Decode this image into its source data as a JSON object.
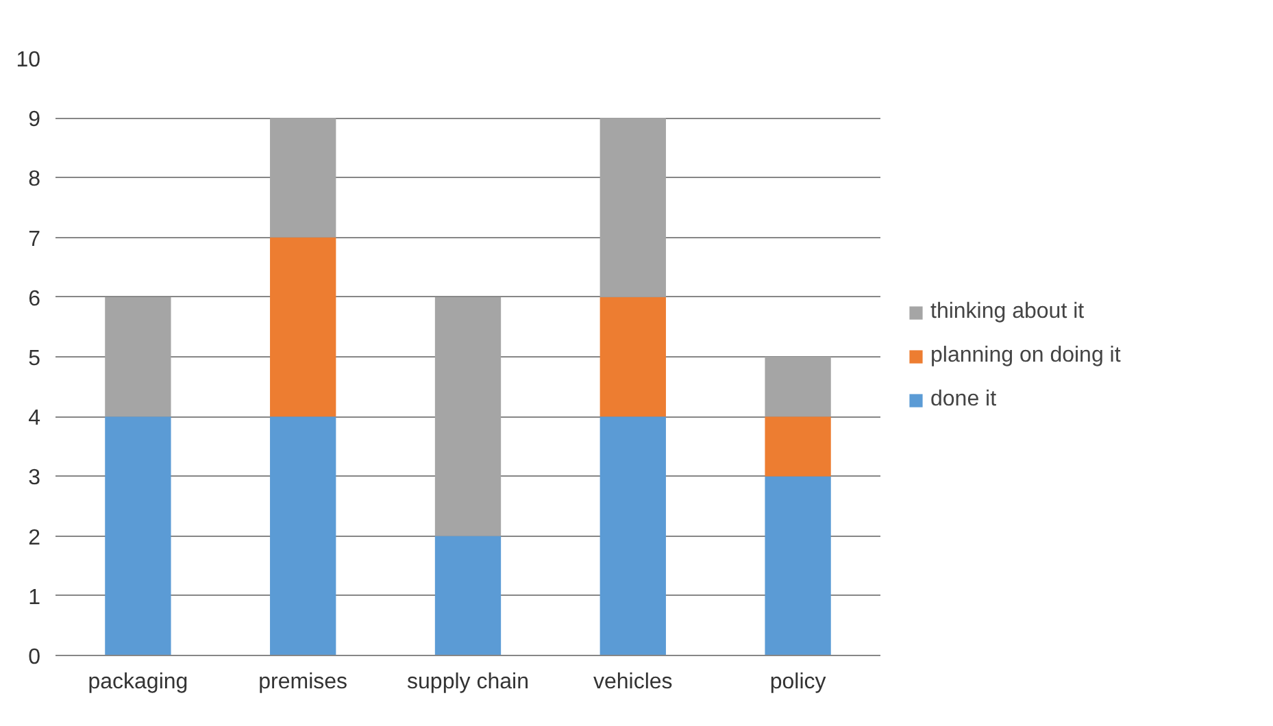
{
  "chart_data": {
    "type": "bar",
    "stacked": true,
    "categories": [
      "packaging",
      "premises",
      "supply chain",
      "vehicles",
      "policy"
    ],
    "series": [
      {
        "name": "done it",
        "color": "#5b9bd5",
        "values": [
          4,
          4,
          2,
          4,
          3
        ]
      },
      {
        "name": "planning on doing it",
        "color": "#ed7d31",
        "values": [
          0,
          3,
          0,
          2,
          1
        ]
      },
      {
        "name": "thinking about it",
        "color": "#a5a5a5",
        "values": [
          2,
          2,
          4,
          3,
          1
        ]
      }
    ],
    "ylim": [
      0,
      10
    ],
    "yticks": [
      0,
      1,
      2,
      3,
      4,
      5,
      6,
      7,
      8,
      9,
      10
    ],
    "grid": "y",
    "legend": "right"
  }
}
